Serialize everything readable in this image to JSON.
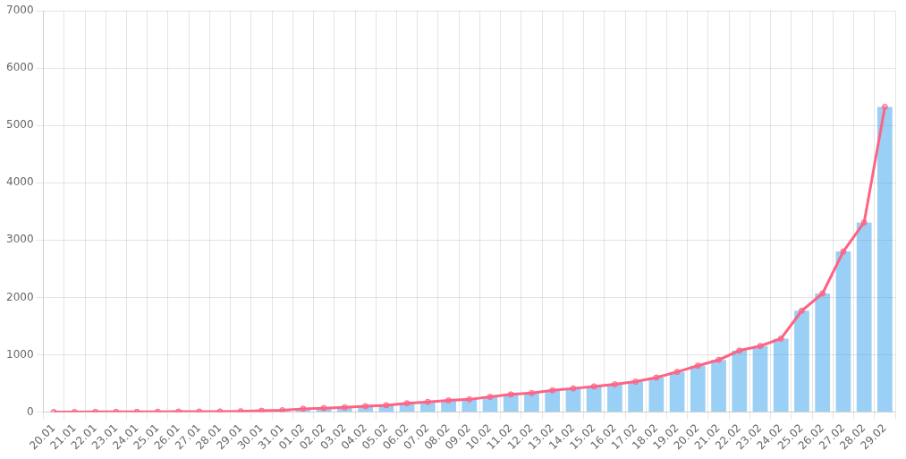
{
  "chart_data": {
    "type": "bar",
    "categories": [
      "20.01",
      "21.01",
      "22.01",
      "23.01",
      "24.01",
      "25.01",
      "26.01",
      "27.01",
      "28.01",
      "29.01",
      "30.01",
      "31.01",
      "01.02",
      "02.02",
      "03.02",
      "04.02",
      "05.02",
      "06.02",
      "07.02",
      "08.02",
      "09.02",
      "10.02",
      "11.02",
      "12.02",
      "13.02",
      "14.02",
      "15.02",
      "16.02",
      "17.02",
      "18.02",
      "19.02",
      "20.02",
      "21.02",
      "22.02",
      "23.02",
      "24.02",
      "25.02",
      "26.02",
      "27.02",
      "28.02",
      "29.02"
    ],
    "series": [
      {
        "type": "bar",
        "values": [
          2,
          2,
          3,
          3,
          4,
          5,
          7,
          8,
          10,
          14,
          23,
          31,
          57,
          68,
          82,
          101,
          118,
          153,
          176,
          203,
          221,
          264,
          307,
          331,
          378,
          412,
          447,
          484,
          530,
          601,
          700,
          809,
          910,
          1073,
          1151,
          1281,
          1766,
          2069,
          2800,
          3306,
          5322
        ]
      },
      {
        "type": "line",
        "marker": "circle",
        "values": [
          2,
          2,
          3,
          3,
          4,
          5,
          7,
          8,
          10,
          14,
          23,
          31,
          57,
          68,
          82,
          101,
          118,
          153,
          176,
          203,
          221,
          264,
          307,
          331,
          378,
          412,
          447,
          484,
          530,
          601,
          700,
          809,
          910,
          1073,
          1151,
          1281,
          1766,
          2069,
          2800,
          3306,
          5322
        ]
      }
    ],
    "ylim": [
      0,
      7000
    ],
    "yticks": [
      0,
      1000,
      2000,
      3000,
      4000,
      5000,
      6000,
      7000
    ],
    "grid": true
  }
}
